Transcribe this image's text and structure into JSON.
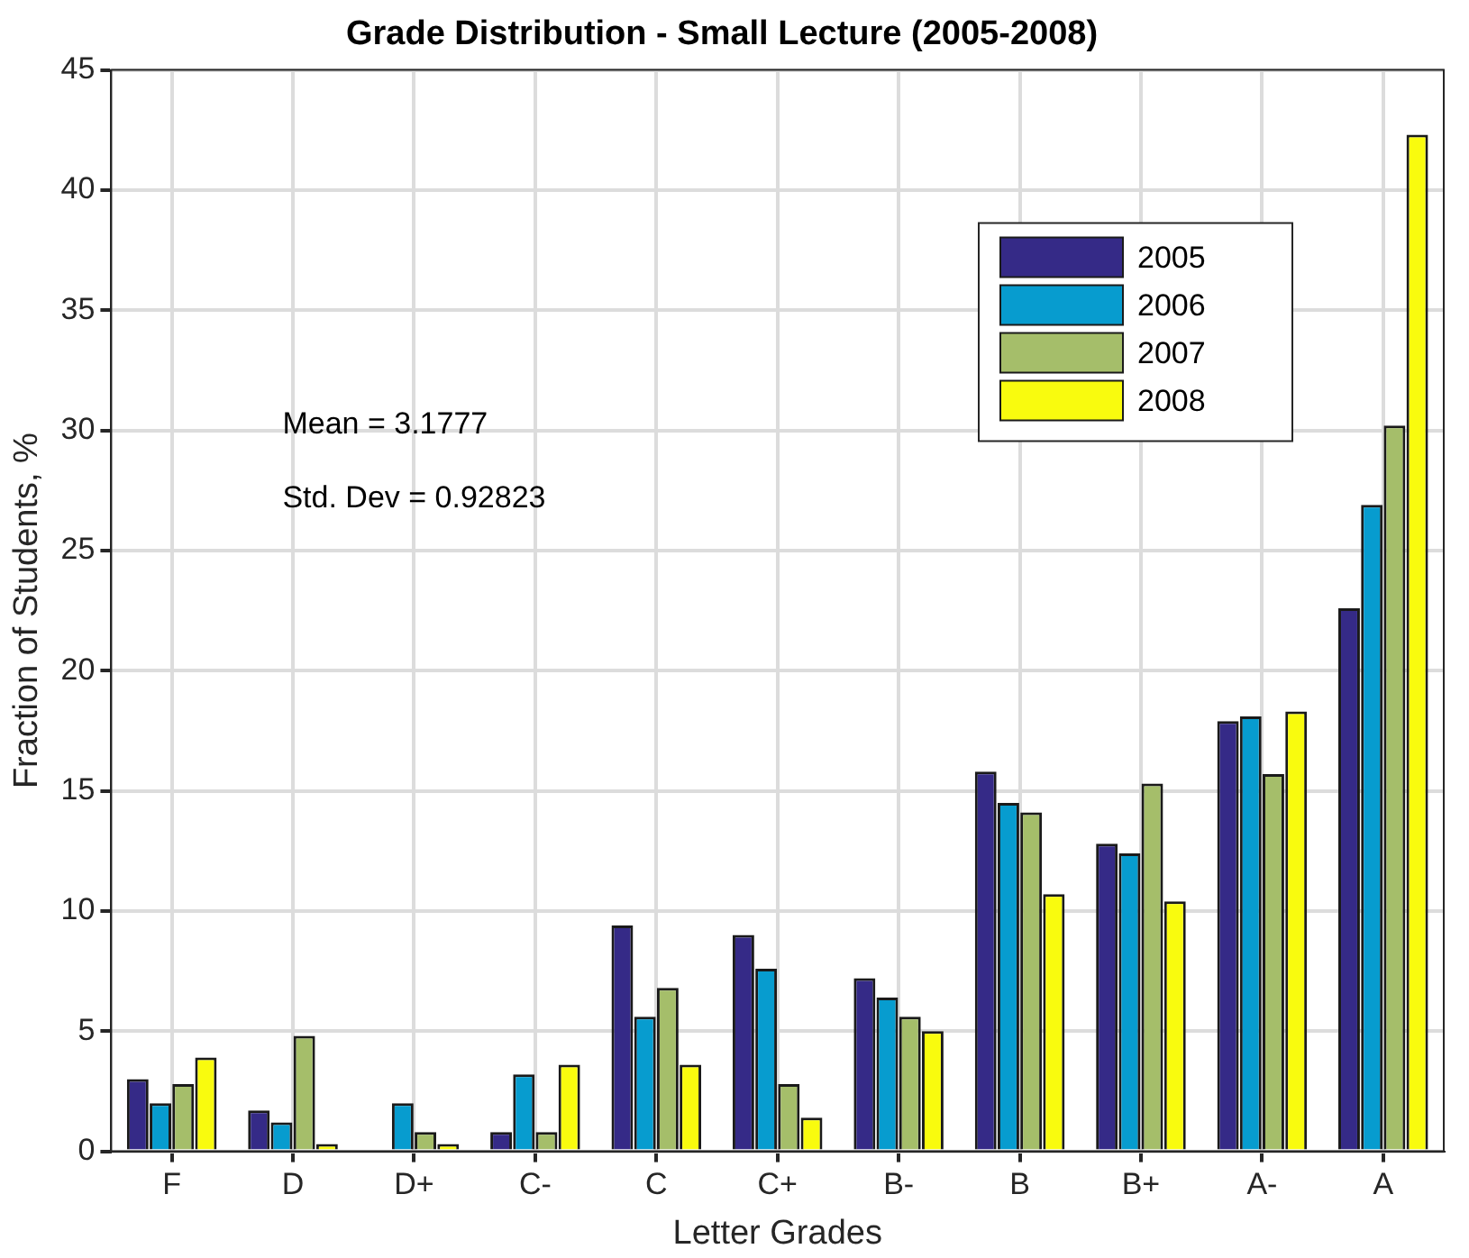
{
  "chart_data": {
    "type": "bar",
    "title": "Grade Distribution - Small Lecture (2005-2008)",
    "xlabel": "Letter Grades",
    "ylabel": "Fraction of Students, %",
    "categories": [
      "F",
      "D",
      "D+",
      "C-",
      "C",
      "C+",
      "B-",
      "B",
      "B+",
      "A-",
      "A"
    ],
    "series": [
      {
        "name": "2005",
        "color": "#352a87",
        "values": [
          3.0,
          1.7,
          0,
          0.8,
          9.4,
          9.0,
          7.2,
          15.8,
          12.8,
          17.9,
          22.6
        ]
      },
      {
        "name": "2006",
        "color": "#079ccf",
        "values": [
          2.0,
          1.2,
          2.0,
          3.2,
          5.6,
          7.6,
          6.4,
          14.5,
          12.4,
          18.1,
          26.9
        ]
      },
      {
        "name": "2007",
        "color": "#a5be6a",
        "values": [
          2.8,
          4.8,
          0.8,
          0.8,
          6.8,
          2.8,
          5.6,
          14.1,
          15.3,
          15.7,
          30.2
        ]
      },
      {
        "name": "2008",
        "color": "#f9fb0e",
        "values": [
          3.9,
          0.3,
          0.3,
          3.6,
          3.6,
          1.4,
          5.0,
          10.7,
          10.4,
          18.3,
          42.3
        ]
      }
    ],
    "ylim": [
      0,
      45
    ],
    "yticks": [
      0,
      5,
      10,
      15,
      20,
      25,
      30,
      35,
      40,
      45
    ],
    "grid": true,
    "legend": "top right",
    "annotations": [
      "Mean = 3.1777",
      "Std. Dev = 0.92823"
    ]
  }
}
